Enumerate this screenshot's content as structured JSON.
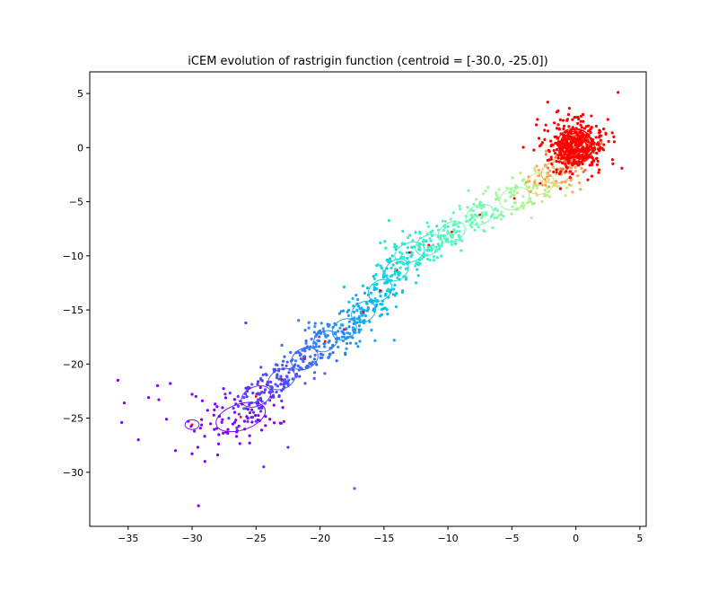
{
  "chart_data": {
    "type": "scatter",
    "title": "iCEM evolution of rastrigin function (centroid = [-30.0, -25.0])",
    "xlabel": "",
    "ylabel": "",
    "xlim": [
      -38.0,
      5.5
    ],
    "ylim": [
      -35.0,
      7.0
    ],
    "grid": false,
    "legend": "none",
    "colormap": "rainbow",
    "x_ticks": [
      -35,
      -30,
      -25,
      -20,
      -15,
      -10,
      -5,
      0,
      5
    ],
    "y_ticks": [
      5,
      0,
      -5,
      -10,
      -15,
      -20,
      -25,
      -30
    ],
    "x_tick_labels": [
      "−35",
      "−30",
      "−25",
      "−20",
      "−15",
      "−10",
      "−5",
      "0",
      "5"
    ],
    "y_tick_labels": [
      "5",
      "0",
      "−5",
      "−10",
      "−15",
      "−20",
      "−25",
      "−30"
    ],
    "generations": [
      {
        "color": "#7f00ff",
        "mean": [
          -26.2,
          -24.9
        ],
        "std": [
          2.0,
          1.2
        ],
        "angle": 18,
        "n": 70,
        "outliers": [
          [
            -35.8,
            -21.5
          ],
          [
            -35.3,
            -23.6
          ],
          [
            -35.5,
            -25.4
          ],
          [
            -32.7,
            -22.0
          ],
          [
            -31.7,
            -21.8
          ],
          [
            -33.4,
            -23.1
          ],
          [
            -32.6,
            -23.3
          ],
          [
            -30.0,
            -22.8
          ],
          [
            -30.3,
            -25.3
          ],
          [
            -34.2,
            -27.0
          ],
          [
            -32.0,
            -25.1
          ],
          [
            -31.3,
            -28.0
          ],
          [
            -30.0,
            -28.3
          ],
          [
            -29.0,
            -29.0
          ],
          [
            -28.0,
            -28.4
          ],
          [
            -29.5,
            -33.1
          ],
          [
            -25.5,
            -27.3
          ],
          [
            -29.7,
            -23.0
          ],
          [
            -29.2,
            -23.4
          ],
          [
            -28.2,
            -23.7
          ]
        ]
      },
      {
        "color": "#6a20ff",
        "mean": [
          -30.0,
          -25.6
        ],
        "std": [
          0.55,
          0.45
        ],
        "angle": 0,
        "n": 0
      },
      {
        "color": "#5a35fe",
        "mean": [
          -25.0,
          -23.0
        ],
        "std": [
          1.2,
          0.9
        ],
        "angle": 22,
        "n": 60,
        "outliers": [
          [
            -25.8,
            -16.2
          ],
          [
            -24.4,
            -29.5
          ],
          [
            -22.5,
            -27.7
          ],
          [
            -26.5,
            -25.9
          ]
        ]
      },
      {
        "color": "#4c50fc",
        "mean": [
          -23.0,
          -21.4
        ],
        "std": [
          1.1,
          0.9
        ],
        "angle": 25,
        "n": 55
      },
      {
        "color": "#3e66fa",
        "mean": [
          -21.2,
          -19.5
        ],
        "std": [
          1.1,
          0.95
        ],
        "angle": 28,
        "n": 55,
        "outliers": [
          [
            -17.3,
            -31.5
          ]
        ]
      },
      {
        "color": "#2f80f6",
        "mean": [
          -19.6,
          -17.9
        ],
        "std": [
          1.0,
          0.9
        ],
        "angle": 30,
        "n": 55
      },
      {
        "color": "#2196f2",
        "mean": [
          -18.1,
          -16.8
        ],
        "std": [
          1.0,
          0.9
        ],
        "angle": 30,
        "n": 50
      },
      {
        "color": "#13aded",
        "mean": [
          -16.6,
          -15.2
        ],
        "std": [
          1.0,
          0.9
        ],
        "angle": 32,
        "n": 50,
        "outliers": [
          [
            -14.2,
            -17.8
          ]
        ]
      },
      {
        "color": "#07c4e6",
        "mean": [
          -15.3,
          -13.2
        ],
        "std": [
          1.0,
          0.9
        ],
        "angle": 35,
        "n": 50
      },
      {
        "color": "#1ad4de",
        "mean": [
          -14.0,
          -11.3
        ],
        "std": [
          1.0,
          0.9
        ],
        "angle": 38,
        "n": 50
      },
      {
        "color": "#30e4d4",
        "mean": [
          -13.0,
          -9.7
        ],
        "std": [
          1.2,
          0.9
        ],
        "angle": 20,
        "n": 55
      },
      {
        "color": "#46efca",
        "mean": [
          -11.5,
          -9.0
        ],
        "std": [
          1.1,
          0.9
        ],
        "angle": 25,
        "n": 50
      },
      {
        "color": "#5cf7be",
        "mean": [
          -9.7,
          -7.8
        ],
        "std": [
          1.1,
          0.9
        ],
        "angle": 25,
        "n": 50
      },
      {
        "color": "#72fcb1",
        "mean": [
          -7.5,
          -6.2
        ],
        "std": [
          1.1,
          0.9
        ],
        "angle": 20,
        "n": 50
      },
      {
        "color": "#a0f99a",
        "mean": [
          -4.8,
          -4.7
        ],
        "std": [
          1.2,
          1.0
        ],
        "angle": 20,
        "n": 55
      },
      {
        "color": "#d4e37e",
        "mean": [
          -2.8,
          -3.3
        ],
        "std": [
          1.1,
          1.0
        ],
        "angle": 15,
        "n": 50
      },
      {
        "color": "#ffa25a",
        "mean": [
          -1.5,
          -2.3
        ],
        "std": [
          1.2,
          1.0
        ],
        "angle": 10,
        "n": 55
      },
      {
        "color": "#ff6a39",
        "mean": [
          -0.2,
          -0.5
        ],
        "std": [
          1.0,
          1.0
        ],
        "angle": 0,
        "n": 50
      },
      {
        "color": "#ff0000",
        "mean": [
          0.0,
          0.2
        ],
        "std": [
          1.15,
          1.15
        ],
        "angle": 0,
        "n": 380,
        "repeat_ellipses": 9,
        "outliers": [
          [
            3.3,
            5.1
          ],
          [
            -2.2,
            4.2
          ],
          [
            -3.0,
            2.6
          ],
          [
            2.5,
            2.6
          ],
          [
            3.6,
            -1.9
          ],
          [
            -1.2,
            -3.8
          ],
          [
            2.9,
            -1.5
          ]
        ]
      }
    ]
  }
}
